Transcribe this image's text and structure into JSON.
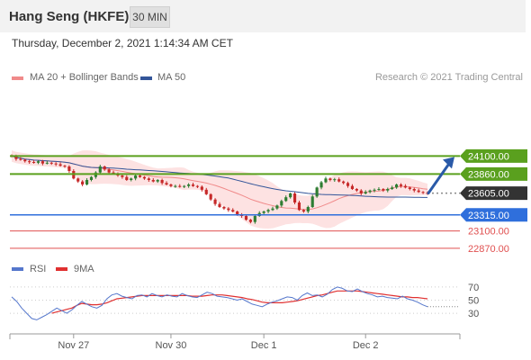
{
  "header": {
    "title": "Hang Seng (HKFE)",
    "timeframe": "30 MIN",
    "datetime": "Thursday, December 2, 2021 1:14:34 AM CET"
  },
  "legend": {
    "items": [
      {
        "label": "MA 20 + Bollinger Bands",
        "color": "#f08a8a"
      },
      {
        "label": "MA 50",
        "color": "#335599"
      }
    ],
    "credit": "Research © 2021 Trading Central"
  },
  "rsi_legend": {
    "items": [
      {
        "label": "RSI",
        "color": "#5577cc"
      },
      {
        "label": "9MA",
        "color": "#e03030"
      }
    ]
  },
  "levels": [
    {
      "value": 24100,
      "label": "24100.00",
      "kind": "resistance",
      "color": "#5aa01e"
    },
    {
      "value": 23860,
      "label": "23860.00",
      "kind": "resistance",
      "color": "#5aa01e"
    },
    {
      "value": 23605,
      "label": "23605.00",
      "kind": "last",
      "color": "#333333"
    },
    {
      "value": 23315,
      "label": "23315.00",
      "kind": "pivot",
      "color": "#2f6fdc"
    },
    {
      "value": 23100,
      "label": "23100.00",
      "kind": "support",
      "color": "#e05050"
    },
    {
      "value": 22870,
      "label": "22870.00",
      "kind": "support",
      "color": "#e05050"
    }
  ],
  "x_axis": {
    "ticks": [
      {
        "label": "Nov 27",
        "index": 14
      },
      {
        "label": "Nov 30",
        "index": 36
      },
      {
        "label": "Dec 1",
        "index": 57
      },
      {
        "label": "Dec 2",
        "index": 80
      }
    ]
  },
  "rsi_axis": {
    "ticks": [
      70,
      50,
      30
    ],
    "range": [
      0,
      100
    ]
  },
  "chart_data": [
    {
      "type": "candlestick",
      "title": "Hang Seng (HKFE)",
      "ylim": [
        22820,
        24980
      ],
      "series": [
        {
          "name": "price",
          "values": [
            24100,
            24060,
            24050,
            24030,
            24020,
            24010,
            24030,
            24000,
            24010,
            24000,
            23990,
            23970,
            23960,
            23900,
            23800,
            23760,
            23720,
            23780,
            23820,
            23880,
            23960,
            23920,
            23880,
            23870,
            23840,
            23820,
            23780,
            23800,
            23840,
            23820,
            23800,
            23780,
            23760,
            23780,
            23740,
            23720,
            23700,
            23700,
            23690,
            23700,
            23720,
            23700,
            23690,
            23650,
            23590,
            23520,
            23460,
            23420,
            23400,
            23380,
            23360,
            23320,
            23300,
            23250,
            23220,
            23300,
            23340,
            23360,
            23380,
            23400,
            23440,
            23500,
            23550,
            23600,
            23480,
            23380,
            23360,
            23420,
            23560,
            23680,
            23750,
            23800,
            23780,
            23790,
            23760,
            23740,
            23700,
            23660,
            23640,
            23600,
            23620,
            23640,
            23650,
            23660,
            23640,
            23660,
            23680,
            23720,
            23700,
            23680,
            23660,
            23640,
            23620,
            23610,
            23605
          ]
        }
      ]
    },
    {
      "type": "line",
      "title": "RSI",
      "ylim": [
        0,
        100
      ],
      "series": [
        {
          "name": "RSI",
          "values": [
            55,
            48,
            38,
            30,
            22,
            20,
            24,
            28,
            33,
            38,
            34,
            30,
            35,
            42,
            48,
            44,
            40,
            38,
            42,
            52,
            58,
            60,
            56,
            54,
            52,
            57,
            58,
            55,
            60,
            57,
            55,
            58,
            56,
            55,
            60,
            57,
            55,
            54,
            58,
            62,
            60,
            56,
            55,
            54,
            52,
            50,
            52,
            48,
            44,
            42,
            40,
            44,
            47,
            49,
            52,
            55,
            54,
            50,
            57,
            61,
            57,
            58,
            55,
            59,
            66,
            70,
            68,
            64,
            63,
            67,
            63,
            60,
            58,
            55,
            56,
            54,
            53,
            52,
            56,
            52,
            50,
            47,
            43,
            40
          ]
        },
        {
          "name": "9MA",
          "values": [
            null,
            null,
            null,
            null,
            null,
            null,
            null,
            null,
            30,
            32,
            34,
            36,
            38,
            42,
            45,
            44,
            43,
            43,
            44,
            46,
            49,
            52,
            53,
            54,
            55,
            56,
            57,
            57,
            57,
            57,
            57,
            57,
            57,
            57,
            57,
            57,
            56,
            56,
            56,
            57,
            58,
            58,
            58,
            57,
            56,
            55,
            54,
            52,
            51,
            49,
            47,
            46,
            46,
            46,
            46,
            47,
            48,
            49,
            51,
            53,
            55,
            57,
            58,
            60,
            62,
            64,
            64,
            64,
            64,
            64,
            63,
            62,
            61,
            60,
            59,
            58,
            57,
            56,
            55,
            55,
            54,
            54,
            53,
            52
          ]
        }
      ]
    }
  ]
}
